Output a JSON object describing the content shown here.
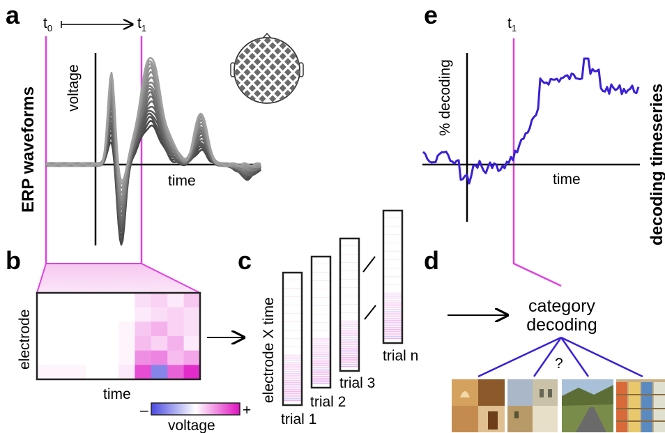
{
  "panels": {
    "a": {
      "letter": "a",
      "t0_main": "t",
      "t0_sub": "0",
      "t1_main": "t",
      "t1_sub": "1",
      "ylabel": "voltage",
      "xlabel": "time",
      "side_label": "ERP waveforms"
    },
    "b": {
      "letter": "b",
      "ylabel": "electrode",
      "xlabel": "time",
      "colorbar_label": "voltage",
      "colorbar_minus": "–",
      "colorbar_plus": "+"
    },
    "c": {
      "letter": "c",
      "ylabel": "electrode X time",
      "trials": [
        "trial 1",
        "trial 2",
        "trial 3",
        "trial n"
      ]
    },
    "d": {
      "letter": "d",
      "title_line1": "category",
      "title_line2": "decoding",
      "question": "?"
    },
    "e": {
      "letter": "e",
      "t1_main": "t",
      "t1_sub": "1",
      "ylabel": "% decoding",
      "xlabel": "time",
      "side_label": "decoding timeseries"
    }
  },
  "colors": {
    "magenta": "#e040e0",
    "decoding_line": "#3a1fd6",
    "erp_gray": "#6a6a6a",
    "heatmap_pos": "#e020c8",
    "heatmap_neg": "#5050e0",
    "category_lines": "#3a1fd6"
  },
  "icons": [
    "head-electrode-map-icon",
    "arrow-right-icon"
  ]
}
